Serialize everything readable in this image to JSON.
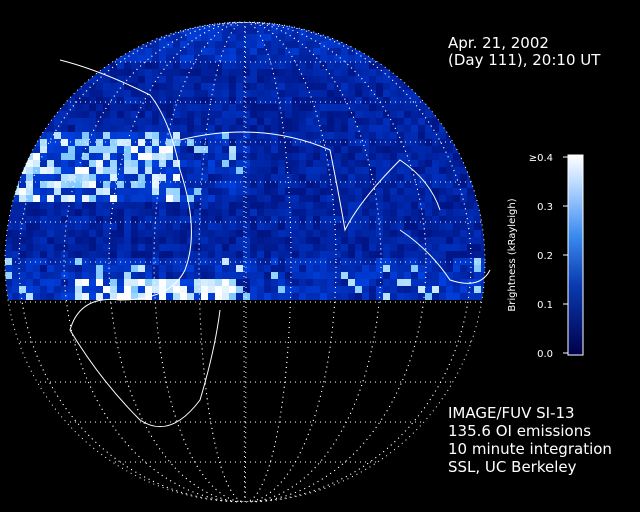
{
  "header": {
    "date": "Apr. 21, 2002",
    "time": "(Day 111), 20:10 UT"
  },
  "colorbar": {
    "label": "Brightness (kRayleigh)",
    "lim": [
      0,
      0.4
    ],
    "ticks": [
      {
        "value": 0,
        "label": "0.0"
      },
      0.1,
      0.2,
      0.3,
      {
        "value": 0.4,
        "label": "≥0.4"
      }
    ]
  },
  "credits": [
    "IMAGE/FUV SI-13",
    "135.6 OI emissions",
    "10 minute integration",
    "SSL, UC Berkeley"
  ]
}
